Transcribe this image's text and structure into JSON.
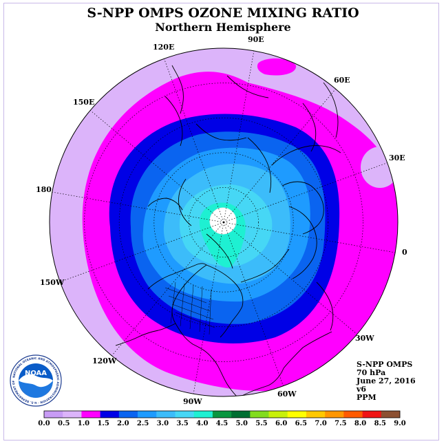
{
  "title": "S-NPP OMPS OZONE MIXING RATIO",
  "subtitle": "Northern Hemisphere",
  "longitude_labels": [
    "90E",
    "60E",
    "30E",
    "0",
    "30W",
    "60W",
    "90W",
    "120W",
    "150W",
    "180",
    "150E",
    "120E"
  ],
  "info": {
    "instrument": "S-NPP OMPS",
    "level": "70 hPa",
    "date": "June 27, 2016",
    "version": "v6",
    "units": "PPM"
  },
  "colorbar": {
    "ticks": [
      "0.0",
      "0.5",
      "1.0",
      "1.5",
      "2.0",
      "2.5",
      "3.0",
      "3.5",
      "4.0",
      "4.5",
      "5.0",
      "5.5",
      "6.0",
      "6.5",
      "7.0",
      "7.5",
      "8.0",
      "8.5",
      "9.0"
    ],
    "colors": [
      "#c89cf5",
      "#dcb4fa",
      "#ff00ff",
      "#0000e6",
      "#0a64f0",
      "#1e9bff",
      "#3cbcfa",
      "#46d7f5",
      "#1ef0d2",
      "#0a9640",
      "#006e32",
      "#82dc1e",
      "#c8f00a",
      "#ffff00",
      "#ffc800",
      "#ff9600",
      "#ff5a00",
      "#f01414",
      "#8c5032"
    ]
  },
  "colors": {
    "frame": "#c8b8e8",
    "coastline": "#000000"
  },
  "logo": {
    "acronym": "NOAA",
    "ring_text": "NATIONAL OCEANIC AND ATMOSPHERIC ADMINISTRATION · U.S. DEPARTMENT OF COMMERCE"
  }
}
